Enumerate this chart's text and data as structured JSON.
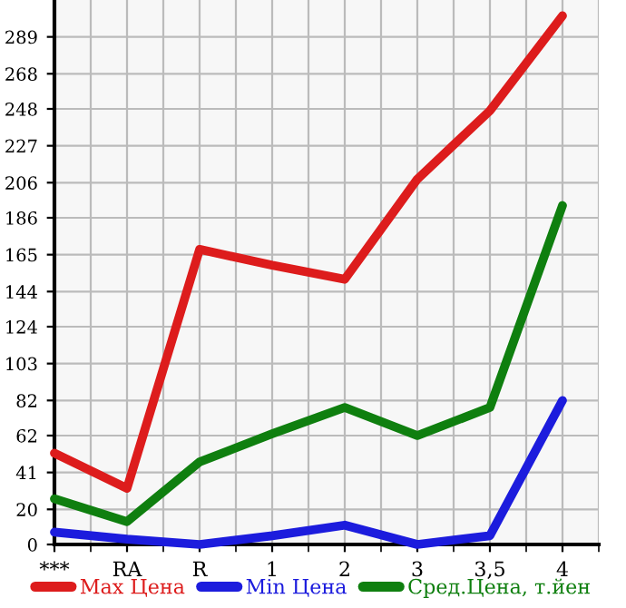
{
  "chart_data": {
    "type": "line",
    "categories": [
      "***",
      "RA",
      "R",
      "1",
      "2",
      "3",
      "3,5",
      "4"
    ],
    "series": [
      {
        "name": "Max Цена",
        "color": "#dd1c1c",
        "values": [
          52,
          32,
          168,
          159,
          151,
          208,
          247,
          301
        ]
      },
      {
        "name": "Min Цена",
        "color": "#1c1cdd",
        "values": [
          7,
          3,
          0,
          5,
          11,
          0,
          5,
          82
        ]
      },
      {
        "name": "Сред.Цена, т.йен",
        "color": "#0f7f0f",
        "values": [
          26,
          13,
          47,
          63,
          78,
          62,
          78,
          193
        ]
      }
    ],
    "ylim": [
      0,
      310
    ],
    "yticks": [
      0,
      20,
      41,
      62,
      82,
      103,
      124,
      144,
      165,
      186,
      206,
      227,
      248,
      268,
      289
    ],
    "grid": true,
    "legend": "bottom",
    "marker": "none",
    "line_style": "solid"
  }
}
